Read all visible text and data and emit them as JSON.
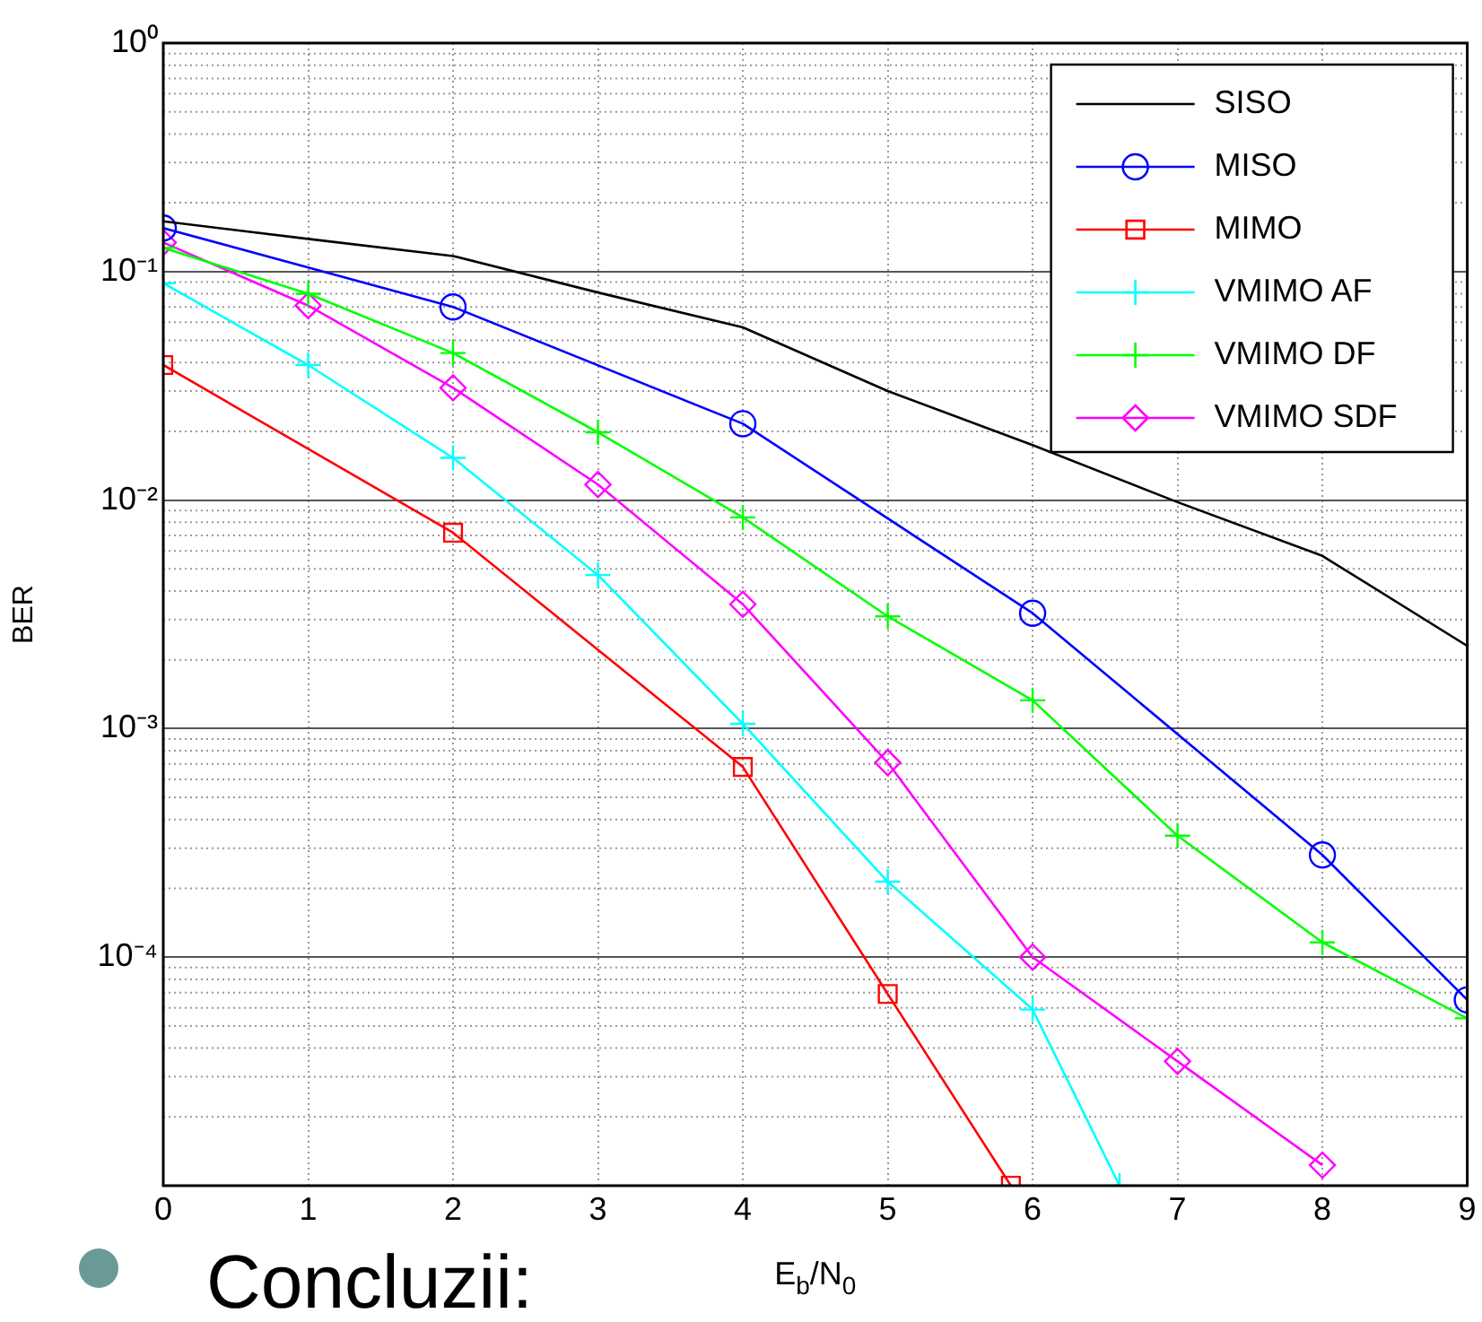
{
  "chart_data": {
    "type": "line",
    "xlabel": "E$_{b}$/N$_{0}$",
    "ylabel": "BER",
    "log": "y",
    "grid": true,
    "legend": "top right",
    "xlim": [
      0,
      9
    ],
    "xticks": [
      0,
      1,
      2,
      3,
      4,
      5,
      6,
      7,
      8,
      9
    ],
    "ylim": [
      1e-05,
      1
    ],
    "yticks": [
      {
        "value": 1e-05,
        "label": null
      },
      {
        "value": 0.0001,
        "label": "10⁻⁴"
      },
      {
        "value": 0.001,
        "label": "10⁻³"
      },
      {
        "value": 0.01,
        "label": "10⁻²"
      },
      {
        "value": 0.1,
        "label": "10⁻¹"
      },
      {
        "value": 1,
        "label": "10⁰"
      }
    ],
    "series": [
      {
        "name": "SISO",
        "color": "#000000",
        "marker": "none",
        "x": [
          0,
          1,
          2,
          3,
          4,
          5,
          6,
          7,
          8,
          9
        ],
        "values": [
          0.166,
          0.139,
          0.117,
          0.081,
          0.057,
          0.03,
          0.0174,
          0.0098,
          0.0057,
          0.0023
        ]
      },
      {
        "name": "MISO",
        "color": "#0000ff",
        "marker": "circle",
        "x": [
          0,
          2,
          4,
          6,
          8,
          9
        ],
        "values": [
          0.155,
          0.07,
          0.0216,
          0.0032,
          0.00028,
          6.5e-05
        ]
      },
      {
        "name": "MIMO",
        "color": "#ff0000",
        "marker": "square",
        "x": [
          0,
          2,
          4,
          5,
          5.85
        ],
        "values": [
          0.039,
          0.0072,
          0.00068,
          6.9e-05,
          1e-05
        ]
      },
      {
        "name": "VMIMO AF",
        "color": "#00ffff",
        "marker": "cross",
        "x": [
          0,
          1,
          2,
          3,
          4,
          5,
          6,
          6.6
        ],
        "values": [
          0.089,
          0.039,
          0.0153,
          0.0047,
          0.00105,
          0.000214,
          5.9e-05,
          1e-05
        ]
      },
      {
        "name": "VMIMO DF",
        "color": "#00ff00",
        "marker": "cross",
        "x": [
          0,
          1,
          2,
          3,
          4,
          5,
          6,
          7,
          8,
          9
        ],
        "values": [
          0.127,
          0.08,
          0.044,
          0.0198,
          0.0084,
          0.0031,
          0.00133,
          0.00034,
          0.000116,
          5.4e-05
        ]
      },
      {
        "name": "VMIMO SDF",
        "color": "#ff00ff",
        "marker": "diamond",
        "x": [
          0,
          1,
          2,
          3,
          4,
          5,
          6,
          7,
          8
        ],
        "values": [
          0.134,
          0.071,
          0.031,
          0.0117,
          0.0035,
          0.00071,
          0.0001,
          3.5e-05,
          1.23e-05
        ]
      }
    ],
    "annotations": [
      "Concluzii:"
    ]
  }
}
